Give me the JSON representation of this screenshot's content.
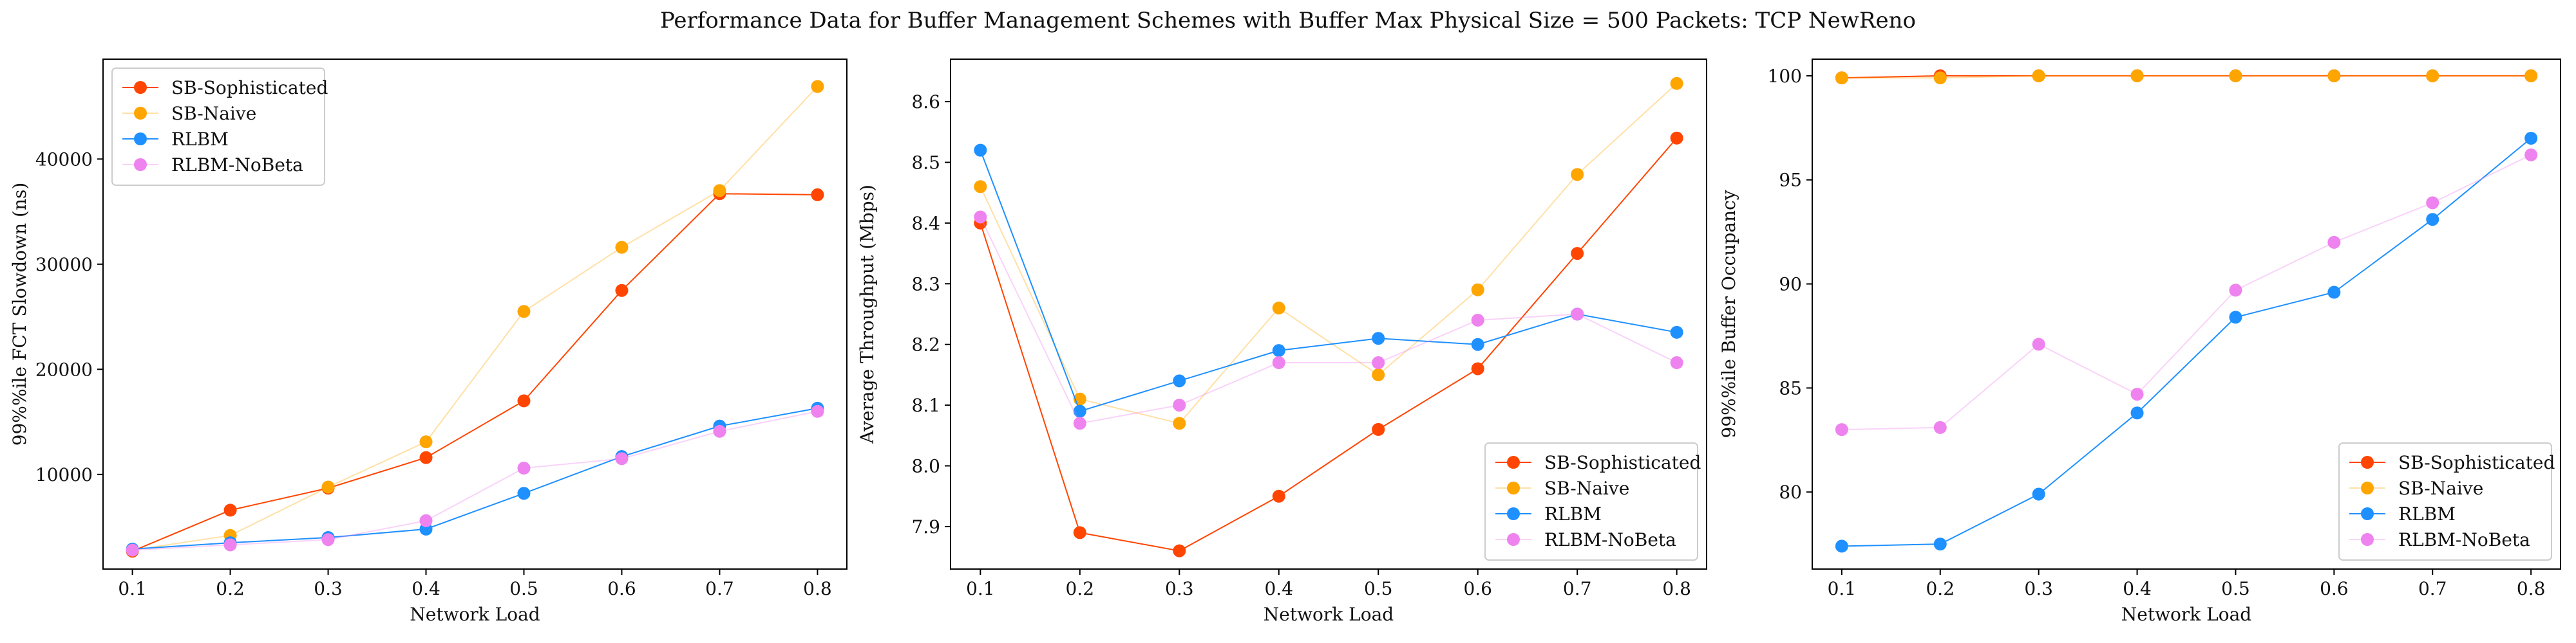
{
  "title": "Performance Data for Buffer Management Schemes with Buffer Max Physical Size = 500 Packets: TCP NewReno",
  "colors": {
    "SB-Sophisticated": "#ff4500",
    "SB-Naive": "#ffa500",
    "RLBM": "#1e90ff",
    "RLBM-NoBeta": "#ee82ee"
  },
  "chart_data": [
    {
      "type": "line",
      "xlabel": "Network Load",
      "ylabel": "99%%ile FCT Slowdown (ns)",
      "x": [
        0.1,
        0.2,
        0.3,
        0.4,
        0.5,
        0.6,
        0.7,
        0.8
      ],
      "xticks": [
        "0.1",
        "0.2",
        "0.3",
        "0.4",
        "0.5",
        "0.6",
        "0.7",
        "0.8"
      ],
      "yticks": [
        "10000",
        "20000",
        "30000",
        "40000"
      ],
      "ytick_values": [
        10000,
        20000,
        30000,
        40000
      ],
      "xlim": [
        0.07,
        0.83
      ],
      "ylim": [
        1000,
        49500
      ],
      "legend_position": "upper-left",
      "series": [
        {
          "name": "SB-Sophisticated",
          "values": [
            2700,
            6600,
            8700,
            11600,
            17000,
            27500,
            36700,
            36600
          ]
        },
        {
          "name": "SB-Naive",
          "values": [
            2800,
            4200,
            8800,
            13100,
            25500,
            31600,
            37000,
            46900
          ]
        },
        {
          "name": "RLBM",
          "values": [
            2900,
            3500,
            4000,
            4800,
            8200,
            11700,
            14600,
            16300
          ]
        },
        {
          "name": "RLBM-NoBeta",
          "values": [
            2800,
            3300,
            3800,
            5600,
            10600,
            11500,
            14100,
            16000
          ]
        }
      ]
    },
    {
      "type": "line",
      "xlabel": "Network Load",
      "ylabel": "Average Throughput (Mbps)",
      "x": [
        0.1,
        0.2,
        0.3,
        0.4,
        0.5,
        0.6,
        0.7,
        0.8
      ],
      "xticks": [
        "0.1",
        "0.2",
        "0.3",
        "0.4",
        "0.5",
        "0.6",
        "0.7",
        "0.8"
      ],
      "yticks": [
        "7.9",
        "8.0",
        "8.1",
        "8.2",
        "8.3",
        "8.4",
        "8.5",
        "8.6"
      ],
      "ytick_values": [
        7.9,
        8.0,
        8.1,
        8.2,
        8.3,
        8.4,
        8.5,
        8.6
      ],
      "xlim": [
        0.07,
        0.83
      ],
      "ylim": [
        7.83,
        8.67
      ],
      "legend_position": "lower-right",
      "series": [
        {
          "name": "SB-Sophisticated",
          "values": [
            8.4,
            7.89,
            7.86,
            7.95,
            8.06,
            8.16,
            8.35,
            8.54
          ]
        },
        {
          "name": "SB-Naive",
          "values": [
            8.46,
            8.11,
            8.07,
            8.26,
            8.15,
            8.29,
            8.48,
            8.63
          ]
        },
        {
          "name": "RLBM",
          "values": [
            8.52,
            8.09,
            8.14,
            8.19,
            8.21,
            8.2,
            8.25,
            8.22
          ]
        },
        {
          "name": "RLBM-NoBeta",
          "values": [
            8.41,
            8.07,
            8.1,
            8.17,
            8.17,
            8.24,
            8.25,
            8.17
          ]
        }
      ]
    },
    {
      "type": "line",
      "xlabel": "Network Load",
      "ylabel": "99%%ile Buffer Occupancy",
      "x": [
        0.1,
        0.2,
        0.3,
        0.4,
        0.5,
        0.6,
        0.7,
        0.8
      ],
      "xticks": [
        "0.1",
        "0.2",
        "0.3",
        "0.4",
        "0.5",
        "0.6",
        "0.7",
        "0.8"
      ],
      "yticks": [
        "80",
        "85",
        "90",
        "95",
        "100"
      ],
      "ytick_values": [
        80,
        85,
        90,
        95,
        100
      ],
      "xlim": [
        0.07,
        0.83
      ],
      "ylim": [
        76.3,
        100.8
      ],
      "legend_position": "lower-right",
      "series": [
        {
          "name": "SB-Sophisticated",
          "values": [
            99.9,
            100.0,
            100.0,
            100.0,
            100.0,
            100.0,
            100.0,
            100.0
          ]
        },
        {
          "name": "SB-Naive",
          "values": [
            99.9,
            99.9,
            100.0,
            100.0,
            100.0,
            100.0,
            100.0,
            100.0
          ]
        },
        {
          "name": "RLBM",
          "values": [
            77.4,
            77.5,
            79.9,
            83.8,
            88.4,
            89.6,
            93.1,
            97.0
          ]
        },
        {
          "name": "RLBM-NoBeta",
          "values": [
            83.0,
            83.1,
            87.1,
            84.7,
            89.7,
            92.0,
            93.9,
            96.2
          ]
        }
      ]
    }
  ]
}
